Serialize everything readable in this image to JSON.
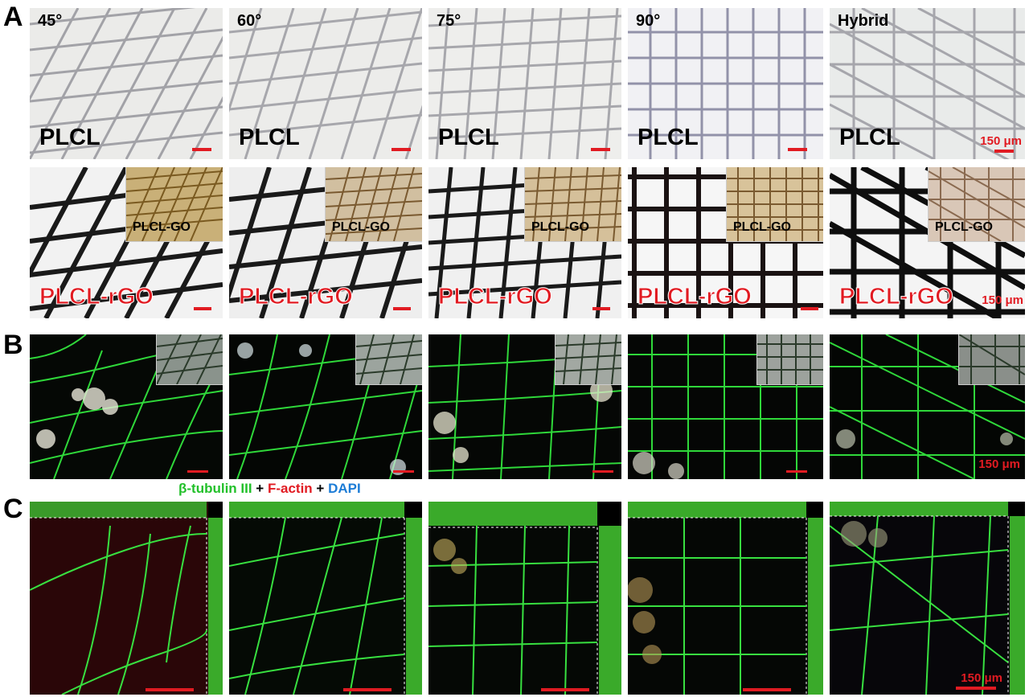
{
  "rows": {
    "a": {
      "letter": "A",
      "angles": [
        "45°",
        "60°",
        "75°",
        "90°",
        "Hybrid"
      ],
      "top_label": "PLCL",
      "bottom_label": "PLCL-rGO",
      "inset_label": "PLCL-GO",
      "scale_top": "150 μm",
      "scale_bottom": "150 μm"
    },
    "b": {
      "letter": "B",
      "scale": "150 μm"
    },
    "c": {
      "letter": "C",
      "scale": "150 μm"
    }
  },
  "legend": {
    "tubulin": "β-tubulin III",
    "plus1": " + ",
    "actin": "F-actin",
    "plus2": " + ",
    "dapi": "DAPI"
  },
  "colors": {
    "scale_red": "#e11b22",
    "tubulin_green": "#22c02a",
    "dapi_blue": "#1c7cd6"
  }
}
